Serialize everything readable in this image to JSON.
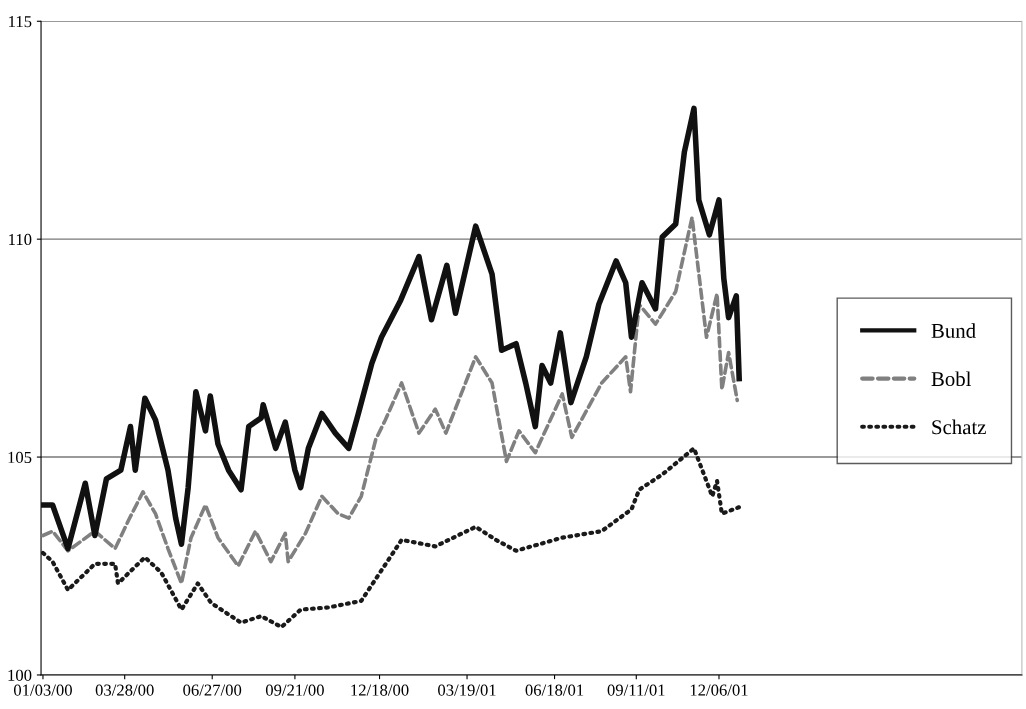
{
  "chart_data": {
    "type": "line",
    "xlim": [
      "2000-01-01",
      "2002-10-17"
    ],
    "xticks": [
      {
        "value": "2000-01-03",
        "label": "01/03/00"
      },
      {
        "value": "2000-03-28",
        "label": "03/28/00"
      },
      {
        "value": "2000-06-27",
        "label": "06/27/00"
      },
      {
        "value": "2000-09-21",
        "label": "09/21/00"
      },
      {
        "value": "2000-12-18",
        "label": "12/18/00"
      },
      {
        "value": "2001-03-19",
        "label": "03/19/01"
      },
      {
        "value": "2001-06-18",
        "label": "06/18/01"
      },
      {
        "value": "2001-09-11",
        "label": "09/11/01"
      },
      {
        "value": "2001-12-06",
        "label": "12/06/01"
      }
    ],
    "ylim": [
      100,
      115
    ],
    "yticks": [
      100,
      105,
      110,
      115
    ],
    "grid": "y",
    "legend": "right",
    "series": [
      {
        "name": "Bund",
        "color": "#111111",
        "line_style": "solid",
        "x": [
          "2000-01-03",
          "2000-01-13",
          "2000-01-29",
          "2000-02-16",
          "2000-02-26",
          "2000-03-09",
          "2000-03-24",
          "2000-04-03",
          "2000-04-08",
          "2000-04-18",
          "2000-04-29",
          "2000-05-12",
          "2000-05-20",
          "2000-05-26",
          "2000-06-02",
          "2000-06-10",
          "2000-06-20",
          "2000-06-25",
          "2000-07-03",
          "2000-07-14",
          "2000-07-27",
          "2000-08-04",
          "2000-08-17",
          "2000-08-19",
          "2000-09-01",
          "2000-09-11",
          "2000-09-21",
          "2000-09-27",
          "2000-10-05",
          "2000-10-19",
          "2000-11-02",
          "2000-11-16",
          "2000-11-26",
          "2000-12-10",
          "2000-12-20",
          "2001-01-09",
          "2001-01-28",
          "2001-02-10",
          "2001-02-26",
          "2001-03-07",
          "2001-03-28",
          "2001-04-14",
          "2001-04-24",
          "2001-05-09",
          "2001-05-19",
          "2001-05-29",
          "2001-06-05",
          "2001-06-14",
          "2001-06-24",
          "2001-07-05",
          "2001-07-21",
          "2001-08-03",
          "2001-08-21",
          "2001-08-31",
          "2001-09-06",
          "2001-09-17",
          "2001-10-01",
          "2001-10-08",
          "2001-10-22",
          "2001-10-31",
          "2001-11-10",
          "2001-11-15",
          "2001-11-26",
          "2001-12-06",
          "2001-12-11",
          "2001-12-16",
          "2001-12-24",
          "2001-12-27"
        ],
        "values": [
          103.9,
          103.9,
          102.9,
          104.4,
          103.2,
          104.5,
          104.7,
          105.7,
          104.7,
          106.35,
          105.85,
          104.7,
          103.6,
          103.0,
          104.3,
          106.5,
          105.6,
          106.4,
          105.3,
          104.7,
          104.25,
          105.7,
          105.9,
          106.2,
          105.2,
          105.8,
          104.7,
          104.3,
          105.2,
          106.0,
          105.55,
          105.2,
          106.0,
          107.15,
          107.75,
          108.6,
          109.6,
          108.15,
          109.4,
          108.3,
          110.3,
          109.2,
          107.45,
          107.6,
          106.7,
          105.7,
          107.1,
          106.7,
          107.85,
          106.25,
          107.3,
          108.5,
          109.5,
          109.0,
          107.75,
          109.0,
          108.4,
          110.05,
          110.35,
          112.0,
          113.0,
          110.9,
          110.1,
          110.9,
          109.1,
          108.2,
          108.7,
          106.8
        ]
      },
      {
        "name": "Bobl",
        "color": "#808080",
        "line_style": "dashed",
        "x": [
          "2000-01-03",
          "2000-01-13",
          "2000-01-29",
          "2000-02-26",
          "2000-03-18",
          "2000-04-01",
          "2000-04-16",
          "2000-04-29",
          "2000-05-12",
          "2000-05-26",
          "2000-06-05",
          "2000-06-20",
          "2000-07-03",
          "2000-07-24",
          "2000-08-11",
          "2000-08-27",
          "2000-09-11",
          "2000-09-14",
          "2000-10-02",
          "2000-10-19",
          "2000-11-05",
          "2000-11-16",
          "2000-11-29",
          "2000-12-14",
          "2000-12-24",
          "2001-01-10",
          "2001-01-28",
          "2001-02-14",
          "2001-02-25",
          "2001-03-28",
          "2001-04-14",
          "2001-04-29",
          "2001-05-12",
          "2001-05-29",
          "2001-06-26",
          "2001-07-06",
          "2001-08-06",
          "2001-08-31",
          "2001-09-05",
          "2001-09-14",
          "2001-10-01",
          "2001-10-22",
          "2001-11-08",
          "2001-11-23",
          "2001-12-04",
          "2001-12-09",
          "2001-12-16",
          "2001-12-25"
        ],
        "values": [
          103.2,
          103.3,
          102.85,
          103.3,
          102.9,
          103.55,
          104.2,
          103.7,
          102.9,
          102.1,
          103.15,
          103.9,
          103.15,
          102.5,
          103.3,
          102.6,
          103.25,
          102.6,
          103.25,
          104.1,
          103.7,
          103.6,
          104.1,
          105.4,
          105.85,
          106.7,
          105.55,
          106.1,
          105.55,
          107.3,
          106.7,
          104.9,
          105.6,
          105.1,
          106.45,
          105.45,
          106.7,
          107.3,
          106.5,
          108.5,
          108.05,
          108.8,
          110.5,
          107.75,
          108.75,
          106.55,
          107.4,
          106.3
        ]
      },
      {
        "name": "Schatz",
        "color": "#1a1a1a",
        "line_style": "dotted",
        "x": [
          "2000-01-03",
          "2000-01-13",
          "2000-01-29",
          "2000-02-26",
          "2000-03-18",
          "2000-03-21",
          "2000-04-18",
          "2000-05-05",
          "2000-05-26",
          "2000-06-12",
          "2000-06-26",
          "2000-07-27",
          "2000-08-17",
          "2000-09-07",
          "2000-09-27",
          "2000-10-26",
          "2000-11-29",
          "2000-12-20",
          "2001-01-10",
          "2001-02-14",
          "2001-03-28",
          "2001-04-18",
          "2001-05-09",
          "2001-06-26",
          "2001-08-06",
          "2001-09-06",
          "2001-09-14",
          "2001-10-08",
          "2001-11-10",
          "2001-11-29",
          "2001-12-04",
          "2001-12-09",
          "2001-12-27"
        ],
        "values": [
          102.8,
          102.6,
          101.95,
          102.55,
          102.55,
          102.1,
          102.7,
          102.35,
          101.5,
          102.1,
          101.65,
          101.2,
          101.35,
          101.1,
          101.5,
          101.55,
          101.7,
          102.4,
          103.1,
          102.95,
          103.4,
          103.1,
          102.85,
          103.15,
          103.3,
          103.8,
          104.25,
          104.6,
          105.2,
          104.1,
          104.45,
          103.7,
          103.85
        ]
      }
    ]
  }
}
